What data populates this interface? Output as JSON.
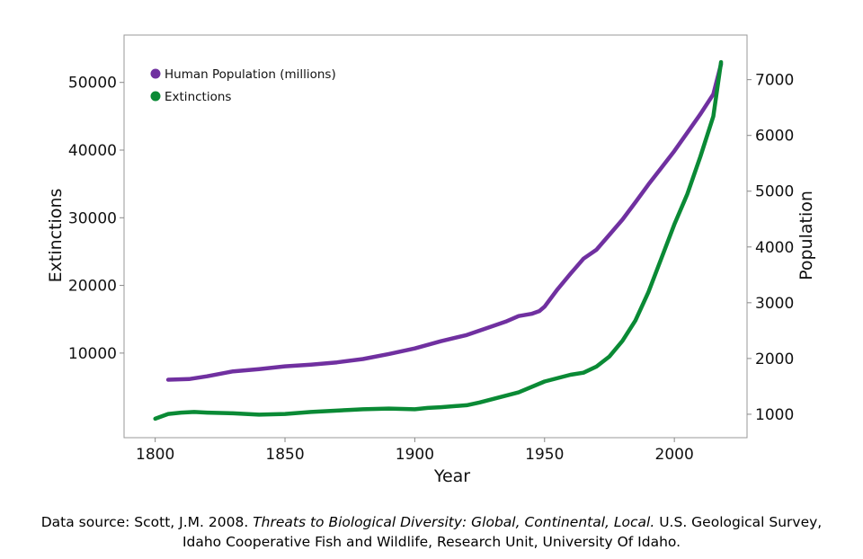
{
  "chart_data": {
    "type": "line",
    "title": "",
    "xlabel": "Year",
    "ylabel_left": "Extinctions",
    "ylabel_right": "Population",
    "xlim": [
      1788,
      2028
    ],
    "ylim_left": [
      -2500,
      57000
    ],
    "ylim_right": [
      580,
      7800
    ],
    "xticks": [
      1800,
      1850,
      1900,
      1950,
      2000
    ],
    "yticks_left": [
      10000,
      20000,
      30000,
      40000,
      50000
    ],
    "yticks_right": [
      1000,
      2000,
      3000,
      4000,
      5000,
      6000,
      7000
    ],
    "grid": false,
    "legend_position": "top-left",
    "series": [
      {
        "name": "Human Population (millions)",
        "axis": "right",
        "color": "#7030a0",
        "x": [
          1805,
          1813,
          1820,
          1830,
          1840,
          1850,
          1860,
          1870,
          1880,
          1890,
          1900,
          1910,
          1920,
          1930,
          1935,
          1940,
          1945,
          1948,
          1950,
          1955,
          1960,
          1965,
          1970,
          1975,
          1980,
          1985,
          1990,
          1995,
          2000,
          2005,
          2010,
          2015,
          2018
        ],
        "values": [
          1620,
          1630,
          1680,
          1770,
          1810,
          1860,
          1890,
          1930,
          1990,
          2080,
          2180,
          2310,
          2420,
          2580,
          2660,
          2760,
          2800,
          2850,
          2930,
          3240,
          3520,
          3790,
          3950,
          4220,
          4490,
          4800,
          5120,
          5420,
          5720,
          6050,
          6380,
          6740,
          7280
        ]
      },
      {
        "name": "Extinctions",
        "axis": "left",
        "color": "#0a8a35",
        "x": [
          1800,
          1805,
          1810,
          1815,
          1820,
          1830,
          1840,
          1850,
          1860,
          1870,
          1875,
          1880,
          1890,
          1900,
          1905,
          1910,
          1920,
          1925,
          1930,
          1940,
          1950,
          1960,
          1965,
          1970,
          1975,
          1980,
          1985,
          1990,
          1995,
          2000,
          2005,
          2010,
          2015,
          2018
        ],
        "values": [
          300,
          1000,
          1200,
          1300,
          1200,
          1100,
          900,
          1000,
          1300,
          1500,
          1600,
          1700,
          1800,
          1700,
          1900,
          2000,
          2300,
          2700,
          3200,
          4200,
          5800,
          6800,
          7100,
          8000,
          9500,
          11800,
          14800,
          19000,
          24000,
          29000,
          33500,
          39000,
          45000,
          53000
        ]
      }
    ]
  },
  "source": {
    "prefix": "Data source: Scott, J.M. 2008. ",
    "title_italic": "Threats to Biological Diversity: Global, Continental, Local.",
    "suffix": " U.S. Geological Survey,",
    "line2": "Idaho Cooperative Fish and Wildlife, Research Unit, University Of Idaho."
  }
}
